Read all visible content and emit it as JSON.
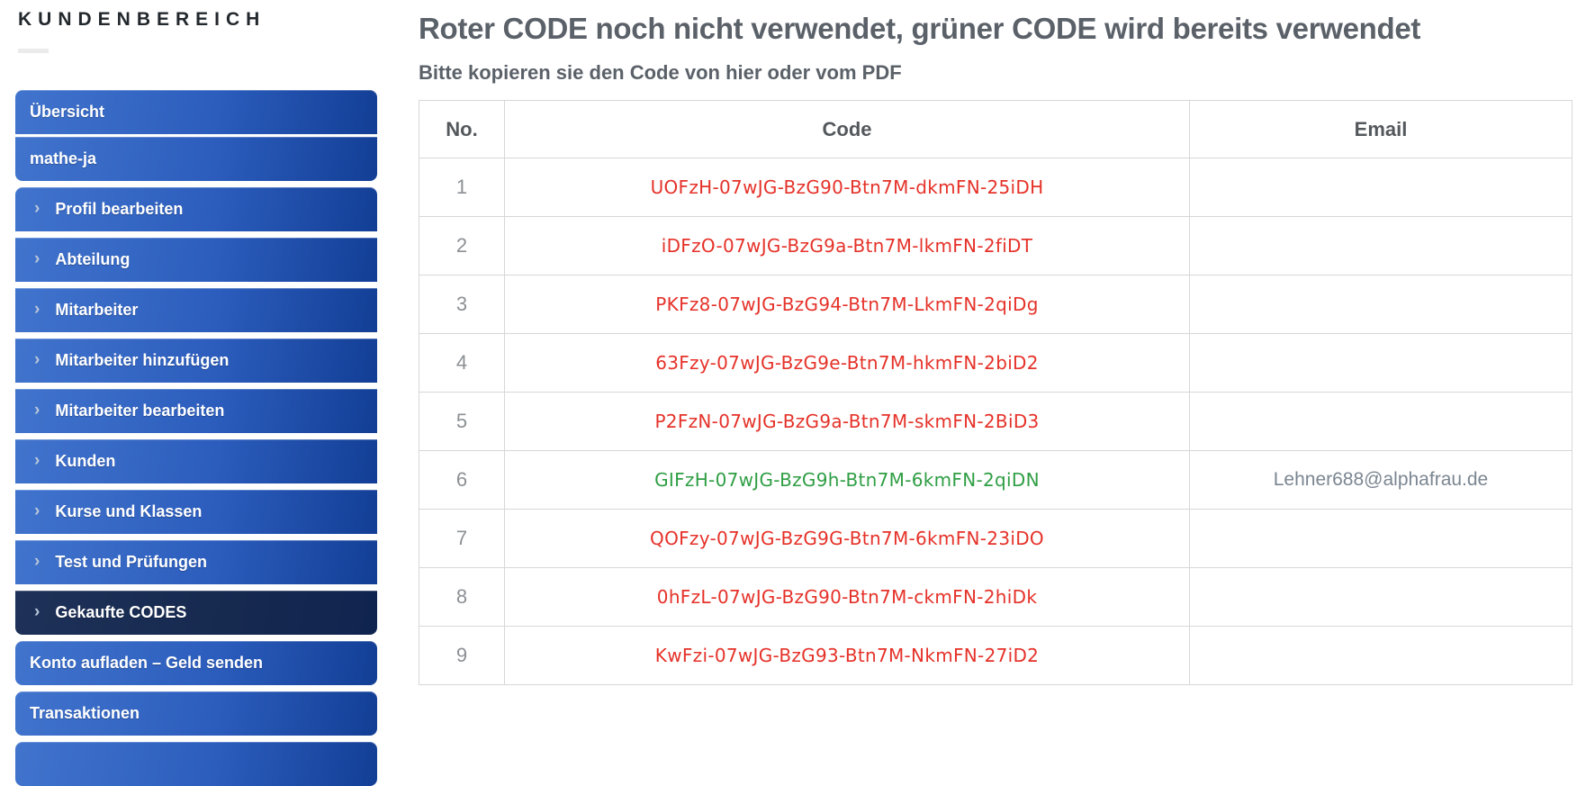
{
  "sidebar": {
    "title": "KUNDENBEREICH",
    "items": [
      {
        "label": "Übersicht",
        "chevron": false,
        "active": false
      },
      {
        "label": "mathe-ja",
        "chevron": false,
        "active": false
      },
      {
        "label": "Profil bearbeiten",
        "chevron": true,
        "active": false
      },
      {
        "label": "Abteilung",
        "chevron": true,
        "active": false
      },
      {
        "label": "Mitarbeiter",
        "chevron": true,
        "active": false
      },
      {
        "label": "Mitarbeiter hinzufügen",
        "chevron": true,
        "active": false
      },
      {
        "label": "Mitarbeiter bearbeiten",
        "chevron": true,
        "active": false
      },
      {
        "label": "Kunden",
        "chevron": true,
        "active": false
      },
      {
        "label": "Kurse und Klassen",
        "chevron": true,
        "active": false
      },
      {
        "label": "Test und Prüfungen",
        "chevron": true,
        "active": false
      },
      {
        "label": "Gekaufte CODES",
        "chevron": true,
        "active": true
      },
      {
        "label": "Konto aufladen – Geld senden",
        "chevron": false,
        "active": false
      },
      {
        "label": "Transaktionen",
        "chevron": false,
        "active": false
      },
      {
        "label": "",
        "chevron": false,
        "active": false
      }
    ],
    "chevron_icon": "›"
  },
  "main": {
    "title": "Roter CODE noch nicht verwendet, grüner CODE wird bereits verwendet",
    "subtitle": "Bitte kopieren sie den Code von hier oder vom PDF",
    "table": {
      "headers": {
        "no": "No.",
        "code": "Code",
        "email": "Email"
      },
      "rows": [
        {
          "no": "1",
          "code": "UOFzH-07wJG-BzG90-Btn7M-dkmFN-25iDH",
          "email": "",
          "status": "unused"
        },
        {
          "no": "2",
          "code": "iDFzO-07wJG-BzG9a-Btn7M-lkmFN-2fiDT",
          "email": "",
          "status": "unused"
        },
        {
          "no": "3",
          "code": "PKFz8-07wJG-BzG94-Btn7M-LkmFN-2qiDg",
          "email": "",
          "status": "unused"
        },
        {
          "no": "4",
          "code": "63Fzy-07wJG-BzG9e-Btn7M-hkmFN-2biD2",
          "email": "",
          "status": "unused"
        },
        {
          "no": "5",
          "code": "P2FzN-07wJG-BzG9a-Btn7M-skmFN-2BiD3",
          "email": "",
          "status": "unused"
        },
        {
          "no": "6",
          "code": "GIFzH-07wJG-BzG9h-Btn7M-6kmFN-2qiDN",
          "email": "Lehner688@alphafrau.de",
          "status": "used"
        },
        {
          "no": "7",
          "code": "QOFzy-07wJG-BzG9G-Btn7M-6kmFN-23iDO",
          "email": "",
          "status": "unused"
        },
        {
          "no": "8",
          "code": "0hFzL-07wJG-BzG90-Btn7M-ckmFN-2hiDk",
          "email": "",
          "status": "unused"
        },
        {
          "no": "9",
          "code": "KwFzi-07wJG-BzG93-Btn7M-NkmFN-27iD2",
          "email": "",
          "status": "unused"
        }
      ]
    }
  },
  "colors": {
    "nav_blue_start": "#4174cd",
    "nav_blue_end": "#123e95",
    "nav_active_navy": "#16294f",
    "code_unused_red": "#e53229",
    "code_used_green": "#2f9e44",
    "heading_gray": "#5b6169",
    "table_border": "#d7d7d7"
  }
}
